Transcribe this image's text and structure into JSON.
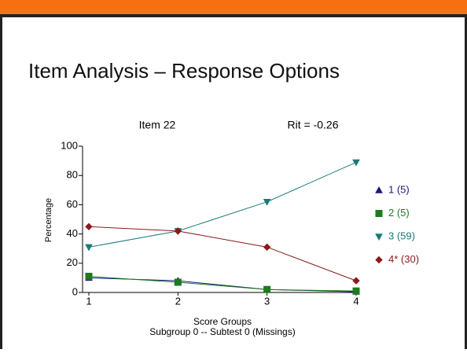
{
  "slide_title": "Item Analysis – Response Options",
  "chart_data": {
    "type": "line",
    "title": "Item 22",
    "subtitle": "Rit = -0.26",
    "xlabel": "Score Groups",
    "caption": "Subgroup 0 -- Subtest 0 (Missings)",
    "ylabel": "Percentage",
    "x": [
      1,
      2,
      3,
      4
    ],
    "xlim": [
      1,
      4
    ],
    "xticks": [
      1,
      2,
      3,
      4
    ],
    "ylim": [
      0,
      100
    ],
    "yticks": [
      0,
      20,
      40,
      60,
      80,
      100
    ],
    "legend": "right",
    "series": [
      {
        "name": "1 (5)",
        "color": "#1a1a7a",
        "marker": "triangle-up",
        "values": [
          10,
          8,
          2,
          0.5
        ]
      },
      {
        "name": "2 (5)",
        "color": "#1e7a1e",
        "marker": "square",
        "values": [
          11,
          7,
          2,
          1
        ]
      },
      {
        "name": "3 (59)",
        "color": "#1a7a7a",
        "marker": "triangle-down",
        "values": [
          31,
          42,
          62,
          89
        ]
      },
      {
        "name": "4* (30)",
        "color": "#8b1a1a",
        "marker": "diamond",
        "values": [
          45,
          42,
          31,
          8
        ]
      }
    ]
  }
}
